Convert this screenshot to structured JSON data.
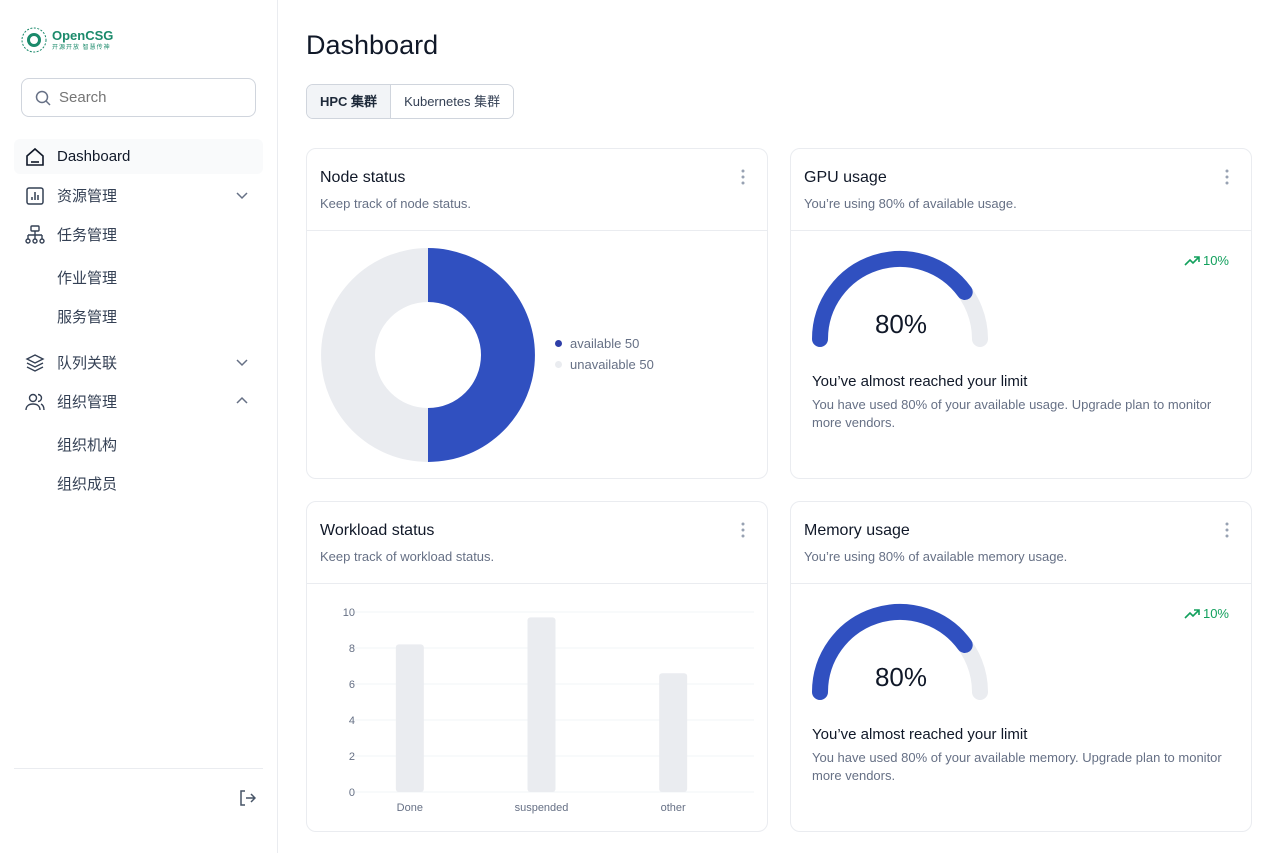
{
  "sidebar": {
    "logo_text": "OpenCSG",
    "logo_sub": "开源开放 智慧传神",
    "search_placeholder": "Search",
    "items": [
      {
        "label": "Dashboard",
        "icon": "home-icon",
        "active": true
      },
      {
        "label": "资源管理",
        "icon": "bar-chart-icon",
        "chevron": "down"
      },
      {
        "label": "任务管理",
        "icon": "hierarchy-icon"
      },
      {
        "label": "作业管理"
      },
      {
        "label": "服务管理"
      },
      {
        "label": "队列关联",
        "icon": "layers-icon",
        "chevron": "down"
      },
      {
        "label": "组织管理",
        "icon": "users-icon",
        "chevron": "up"
      },
      {
        "label": "组织机构"
      },
      {
        "label": "组织成员"
      }
    ],
    "logout_icon": "logout-icon"
  },
  "main": {
    "title": "Dashboard",
    "tabs": [
      {
        "label": "HPC 集群",
        "active": true
      },
      {
        "label": "Kubernetes 集群"
      }
    ],
    "node_status": {
      "title": "Node status",
      "subtitle": "Keep track of node status.",
      "legend": [
        "available 50",
        "unavailable 50"
      ]
    },
    "gpu": {
      "title": "GPU usage",
      "subtitle": "You’re using 80% of available usage.",
      "trend": "10%",
      "value_label": "80%",
      "value": 80,
      "limit_title": "You’ve almost reached your limit",
      "limit_desc": "You have used 80% of your available usage. Upgrade plan to monitor more vendors."
    },
    "workload": {
      "title": "Workload status",
      "subtitle": "Keep track of workload status."
    },
    "memory": {
      "title": "Memory usage",
      "subtitle": "You’re using 80% of available memory usage.",
      "trend": "10%",
      "value_label": "80%",
      "value": 80,
      "limit_title": "You’ve almost reached your limit",
      "limit_desc": "You have used 80% of your available memory. Upgrade plan to monitor more vendors."
    }
  },
  "colors": {
    "primary": "#3050c0",
    "track": "#eaecf0",
    "trend": "#12a05d",
    "brand": "#1b8a6b"
  },
  "chart_data": [
    {
      "type": "pie",
      "donut": true,
      "categories": [
        "available",
        "unavailable"
      ],
      "values": [
        50,
        50
      ],
      "colors": [
        "#3050c0",
        "#eaecf0"
      ],
      "legend": "right"
    },
    {
      "type": "bar",
      "categories": [
        "Done",
        "suspended",
        "other"
      ],
      "values": [
        8.2,
        9.7,
        6.6
      ],
      "ylim": [
        0,
        10
      ],
      "yticks": [
        "0",
        "2",
        "4",
        "6",
        "8",
        "10"
      ],
      "grid": true,
      "color": "#eaecf0"
    }
  ]
}
